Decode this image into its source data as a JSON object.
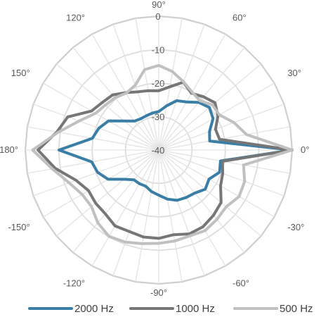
{
  "chart_data": {
    "type": "polar-line",
    "title": "",
    "angle_unit": "deg",
    "radial_axis": {
      "min": -40,
      "max": 0,
      "ticks": [
        0,
        -10,
        -20,
        -30,
        -40
      ]
    },
    "angle_labels": [
      {
        "angle": 0,
        "label": "0°"
      },
      {
        "angle": 30,
        "label": "30°"
      },
      {
        "angle": 60,
        "label": "60°"
      },
      {
        "angle": 90,
        "label": "90°"
      },
      {
        "angle": 120,
        "label": "120°"
      },
      {
        "angle": 150,
        "label": "150°"
      },
      {
        "angle": 180,
        "label": "(-) 180°"
      },
      {
        "angle": -150,
        "label": "-150°"
      },
      {
        "angle": -120,
        "label": "-120°"
      },
      {
        "angle": -90,
        "label": "-90°"
      },
      {
        "angle": -60,
        "label": "-60°"
      },
      {
        "angle": -30,
        "label": "-30°"
      }
    ],
    "legend": {
      "position": "bottom"
    },
    "series": [
      {
        "name": "2000 Hz",
        "color": "#3a7ea6",
        "width": 4,
        "theta": [
          0,
          10,
          20,
          30,
          40,
          50,
          60,
          70,
          80,
          90,
          100,
          110,
          120,
          130,
          140,
          150,
          160,
          170,
          180,
          190,
          200,
          210,
          220,
          230,
          240,
          250,
          260,
          270,
          280,
          290,
          300,
          310,
          320,
          330,
          340,
          350,
          360
        ],
        "r": [
          0,
          -24.5,
          -23.8,
          -21.2,
          -20.2,
          -21.4,
          -23.4,
          -24.3,
          -26.6,
          -28.5,
          -28.8,
          -29.1,
          -29.2,
          -28.7,
          -26.5,
          -22.6,
          -20.9,
          -19.8,
          -10.1,
          -19.6,
          -20.5,
          -22.5,
          -26.4,
          -28.4,
          -28.4,
          -28.5,
          -27.4,
          -26.5,
          -25.1,
          -24.0,
          -23.6,
          -23.2,
          -21.8,
          -22.6,
          -20.6,
          -21.2,
          0
        ]
      },
      {
        "name": "1000 Hz",
        "color": "#767676",
        "width": 4,
        "theta": [
          0,
          10,
          20,
          30,
          40,
          50,
          60,
          70,
          80,
          90,
          100,
          110,
          120,
          130,
          140,
          150,
          160,
          170,
          180,
          190,
          200,
          210,
          220,
          230,
          240,
          250,
          260,
          270,
          280,
          290,
          300,
          310,
          320,
          330,
          340,
          350,
          360
        ],
        "r": [
          0,
          -21.5,
          -21.9,
          -19.5,
          -18.0,
          -19.2,
          -20.4,
          -18.4,
          -20.8,
          -22.3,
          -22.0,
          -21.5,
          -20.2,
          -18.5,
          -17.9,
          -16.7,
          -11.0,
          -9.0,
          -3.8,
          -8.5,
          -13.6,
          -15.7,
          -15.3,
          -15.1,
          -13.8,
          -14.1,
          -13.6,
          -13.6,
          -14.3,
          -13.3,
          -13.5,
          -14.5,
          -15.6,
          -18.6,
          -19.6,
          -20.6,
          0
        ]
      },
      {
        "name": "500 Hz",
        "color": "#c0c0c0",
        "width": 4,
        "theta": [
          0,
          10,
          20,
          30,
          40,
          50,
          60,
          70,
          80,
          90,
          100,
          110,
          120,
          130,
          140,
          150,
          160,
          170,
          180,
          190,
          200,
          210,
          220,
          230,
          240,
          250,
          260,
          270,
          280,
          290,
          300,
          310,
          320,
          330,
          340,
          350,
          360
        ],
        "r": [
          0,
          -13.3,
          -16.0,
          -19.0,
          -19.0,
          -20.8,
          -20.0,
          -18.3,
          -16.2,
          -14.7,
          -15.6,
          -19.4,
          -20.4,
          -19.6,
          -19.1,
          -18.1,
          -14.6,
          -9.4,
          -2.2,
          -7.6,
          -11.4,
          -13.5,
          -13.7,
          -11.6,
          -10.2,
          -10.7,
          -11.6,
          -12.1,
          -12.4,
          -12.7,
          -12.2,
          -12.9,
          -13.6,
          -12.2,
          -12.6,
          -14.2,
          0
        ]
      }
    ]
  }
}
